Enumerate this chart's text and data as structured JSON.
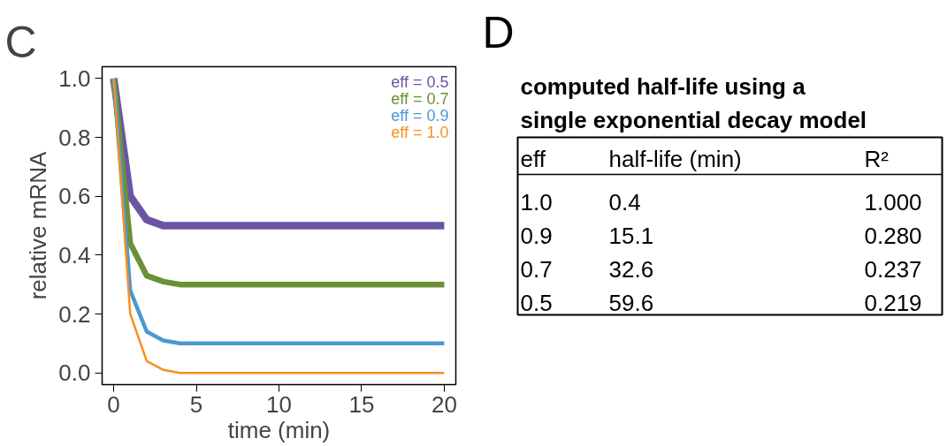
{
  "chart_data": [
    {
      "type": "line",
      "title": "C",
      "xlabel": "time (min)",
      "ylabel": "relative mRNA",
      "x": [
        0,
        1,
        2,
        3,
        4,
        5,
        20
      ],
      "series": [
        {
          "name": "eff = 0.5",
          "color": "#6a55a4",
          "values": [
            1.0,
            0.6,
            0.52,
            0.5,
            0.5,
            0.5,
            0.5
          ]
        },
        {
          "name": "eff = 0.7",
          "color": "#6b9134",
          "values": [
            1.0,
            0.44,
            0.33,
            0.31,
            0.3,
            0.3,
            0.3
          ]
        },
        {
          "name": "eff = 0.9",
          "color": "#4b98d2",
          "values": [
            1.0,
            0.28,
            0.14,
            0.11,
            0.1,
            0.1,
            0.1
          ]
        },
        {
          "name": "eff = 1.0",
          "color": "#f6901e",
          "values": [
            1.0,
            0.2,
            0.04,
            0.01,
            0.0,
            0.0,
            0.0
          ]
        }
      ],
      "xlim": [
        -0.7,
        20.7
      ],
      "ylim": [
        -0.04,
        1.04
      ],
      "xticks": [
        0,
        5,
        10,
        15,
        20
      ],
      "yticks": [
        {
          "value": 0,
          "label": "0.0"
        },
        {
          "value": 0.2,
          "label": "0.2"
        },
        {
          "value": 0.4,
          "label": "0.4"
        },
        {
          "value": 0.6,
          "label": "0.6"
        },
        {
          "value": 0.8,
          "label": "0.8"
        },
        {
          "value": 1,
          "label": "1.0"
        }
      ],
      "legend": "top right",
      "grid": false
    },
    {
      "type": "other",
      "title": "D",
      "subtitle": "computed half-life using a single exponential decay model",
      "categories": [
        "eff",
        "half-life (min)",
        "R²"
      ],
      "annotations": [
        "1.0",
        "0.4",
        "1.000",
        "0.9",
        "15.1",
        "0.280",
        "0.7",
        "32.6",
        "0.237",
        "0.5",
        "59.6",
        "0.219"
      ]
    }
  ]
}
